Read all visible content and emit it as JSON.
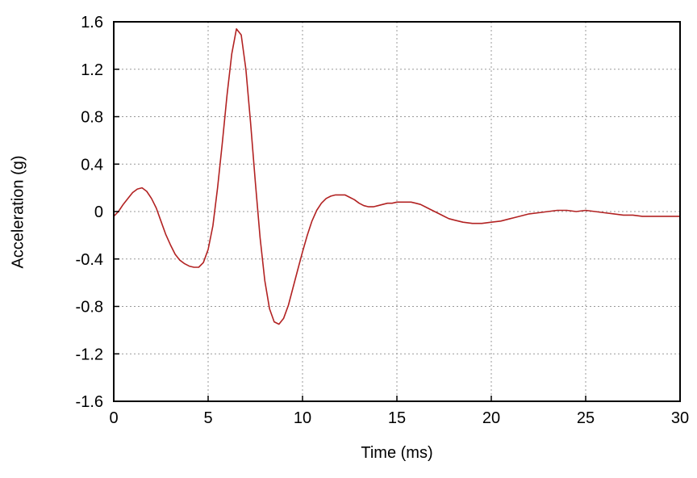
{
  "chart_data": {
    "type": "line",
    "title": "",
    "xlabel": "Time (ms)",
    "ylabel": "Acceleration (g)",
    "xlim": [
      0,
      30
    ],
    "ylim": [
      -1.6,
      1.6
    ],
    "x_ticks": [
      0,
      5,
      10,
      15,
      20,
      25,
      30
    ],
    "x_tick_labels": [
      "0",
      "5",
      "10",
      "15",
      "20",
      "25",
      "30"
    ],
    "y_ticks": [
      -1.6,
      -1.2,
      -0.8,
      -0.4,
      0,
      0.4,
      0.8,
      1.2,
      1.6
    ],
    "y_tick_labels": [
      "-1.6",
      "-1.2",
      "-0.8",
      "-0.4",
      "0",
      "0.4",
      "0.8",
      "1.2",
      "1.6"
    ],
    "grid": true,
    "grid_style": "dashed",
    "legend": "none",
    "colors": {
      "line": "#b22222",
      "grid": "#999999",
      "border": "#000000",
      "background": "#ffffff",
      "text": "#000000"
    },
    "series": [
      {
        "name": "acceleration",
        "x": [
          0,
          0.25,
          0.5,
          0.75,
          1,
          1.25,
          1.5,
          1.75,
          2,
          2.25,
          2.5,
          2.75,
          3,
          3.25,
          3.5,
          3.75,
          4,
          4.25,
          4.5,
          4.75,
          5,
          5.25,
          5.5,
          5.75,
          6,
          6.25,
          6.5,
          6.75,
          7,
          7.25,
          7.5,
          7.75,
          8,
          8.25,
          8.5,
          8.75,
          9,
          9.25,
          9.5,
          9.75,
          10,
          10.25,
          10.5,
          10.75,
          11,
          11.25,
          11.5,
          11.75,
          12,
          12.25,
          12.5,
          12.75,
          13,
          13.25,
          13.5,
          13.75,
          14,
          14.25,
          14.5,
          14.75,
          15,
          15.25,
          15.5,
          15.75,
          16,
          16.25,
          16.5,
          16.75,
          17,
          17.25,
          17.5,
          17.75,
          18,
          18.5,
          19,
          19.5,
          20,
          20.5,
          21,
          21.5,
          22,
          22.5,
          23,
          23.5,
          24,
          24.5,
          25,
          25.5,
          26,
          26.5,
          27,
          27.5,
          28,
          28.5,
          29,
          29.5,
          30
        ],
        "y": [
          -0.04,
          0.0,
          0.06,
          0.11,
          0.16,
          0.19,
          0.2,
          0.17,
          0.11,
          0.03,
          -0.08,
          -0.19,
          -0.28,
          -0.36,
          -0.41,
          -0.44,
          -0.46,
          -0.47,
          -0.47,
          -0.43,
          -0.32,
          -0.12,
          0.2,
          0.58,
          0.98,
          1.33,
          1.54,
          1.49,
          1.2,
          0.75,
          0.25,
          -0.22,
          -0.58,
          -0.82,
          -0.93,
          -0.95,
          -0.9,
          -0.79,
          -0.64,
          -0.49,
          -0.34,
          -0.2,
          -0.08,
          0.01,
          0.07,
          0.11,
          0.13,
          0.14,
          0.14,
          0.14,
          0.12,
          0.1,
          0.07,
          0.05,
          0.04,
          0.04,
          0.05,
          0.06,
          0.07,
          0.07,
          0.08,
          0.08,
          0.08,
          0.08,
          0.07,
          0.06,
          0.04,
          0.02,
          0.0,
          -0.02,
          -0.04,
          -0.06,
          -0.07,
          -0.09,
          -0.1,
          -0.1,
          -0.09,
          -0.08,
          -0.06,
          -0.04,
          -0.02,
          -0.01,
          0.0,
          0.01,
          0.01,
          0.0,
          0.01,
          0.0,
          -0.01,
          -0.02,
          -0.03,
          -0.03,
          -0.04,
          -0.04,
          -0.04,
          -0.04,
          -0.04
        ]
      }
    ]
  }
}
